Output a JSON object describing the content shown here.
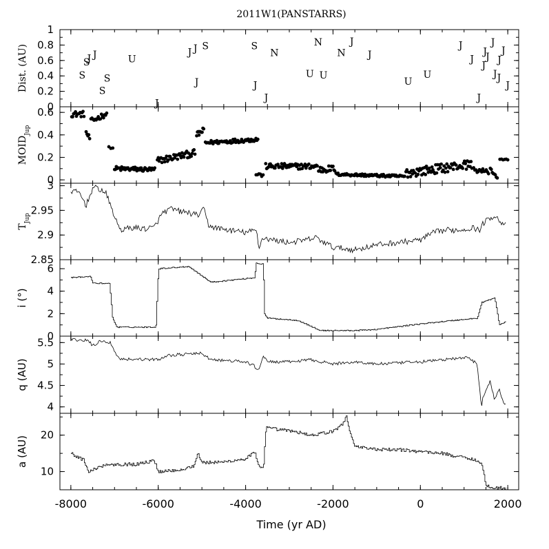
{
  "title": "2011W1(PANSTARRS)",
  "xlabel": "Time (yr AD)",
  "x_range": [
    -8250,
    2250
  ],
  "x_ticks": [
    -8000,
    -6000,
    -4000,
    -2000,
    0,
    2000
  ],
  "x_tick_labels": [
    "-8000",
    "-6000",
    "-4000",
    "-2000",
    "0",
    "2000"
  ],
  "panel_labels": {
    "dist": "Dist. (AU)",
    "moid_main": "MOID",
    "moid_sub": "Jup",
    "tj_main": "T",
    "tj_sub": "Jup",
    "inc": "i (°)",
    "q": "q (AU)",
    "a": "a (AU)"
  },
  "chart_data": [
    {
      "id": "dist",
      "type": "scatter",
      "marker": "letters",
      "ylabel": "Dist. (AU)",
      "ylim": [
        0,
        1
      ],
      "ticks": [
        0,
        0.2,
        0.4,
        0.6,
        0.8,
        1
      ],
      "tick_labels": [
        "0",
        "0.2",
        "0.4",
        "0.6",
        "0.8",
        "1"
      ],
      "points": [
        {
          "x": -7740,
          "y": 0.41,
          "label": "S"
        },
        {
          "x": -7640,
          "y": 0.58,
          "label": "S"
        },
        {
          "x": -7580,
          "y": 0.63,
          "label": "J"
        },
        {
          "x": -7450,
          "y": 0.68,
          "label": "J"
        },
        {
          "x": -7280,
          "y": 0.21,
          "label": "S"
        },
        {
          "x": -7170,
          "y": 0.37,
          "label": "S"
        },
        {
          "x": -6600,
          "y": 0.62,
          "label": "U"
        },
        {
          "x": -6030,
          "y": 0.05,
          "label": "J"
        },
        {
          "x": -5280,
          "y": 0.71,
          "label": "J"
        },
        {
          "x": -5150,
          "y": 0.76,
          "label": "J"
        },
        {
          "x": -4920,
          "y": 0.79,
          "label": "S"
        },
        {
          "x": -5120,
          "y": 0.32,
          "label": "J"
        },
        {
          "x": -3800,
          "y": 0.79,
          "label": "S"
        },
        {
          "x": -3780,
          "y": 0.28,
          "label": "J"
        },
        {
          "x": -3530,
          "y": 0.12,
          "label": "J"
        },
        {
          "x": -3340,
          "y": 0.7,
          "label": "N"
        },
        {
          "x": -2530,
          "y": 0.43,
          "label": "U"
        },
        {
          "x": -2340,
          "y": 0.84,
          "label": "N"
        },
        {
          "x": -2220,
          "y": 0.41,
          "label": "U"
        },
        {
          "x": -1810,
          "y": 0.7,
          "label": "N"
        },
        {
          "x": -1570,
          "y": 0.85,
          "label": "J"
        },
        {
          "x": -1160,
          "y": 0.68,
          "label": "J"
        },
        {
          "x": -280,
          "y": 0.33,
          "label": "U"
        },
        {
          "x": 160,
          "y": 0.42,
          "label": "U"
        },
        {
          "x": 920,
          "y": 0.8,
          "label": "J"
        },
        {
          "x": 1180,
          "y": 0.62,
          "label": "J"
        },
        {
          "x": 1340,
          "y": 0.12,
          "label": "J"
        },
        {
          "x": 1450,
          "y": 0.54,
          "label": "J"
        },
        {
          "x": 1480,
          "y": 0.72,
          "label": "J"
        },
        {
          "x": 1540,
          "y": 0.65,
          "label": "J"
        },
        {
          "x": 1660,
          "y": 0.84,
          "label": "J"
        },
        {
          "x": 1710,
          "y": 0.43,
          "label": "J"
        },
        {
          "x": 1800,
          "y": 0.38,
          "label": "J"
        },
        {
          "x": 1810,
          "y": 0.61,
          "label": "J"
        },
        {
          "x": 1900,
          "y": 0.73,
          "label": "J"
        },
        {
          "x": 2000,
          "y": 0.28,
          "label": "J"
        }
      ]
    },
    {
      "id": "moid",
      "type": "scatter",
      "ylabel": "MOID Jup",
      "ylim": [
        -0.03,
        0.65
      ],
      "ticks": [
        0,
        0.2,
        0.4,
        0.6
      ],
      "tick_labels": [
        "0",
        "0.2",
        "0.4",
        "0.6"
      ],
      "segments": [
        {
          "x0": -7980,
          "x1": -7700,
          "n": 14,
          "v0": 0.585,
          "v1": 0.585,
          "noise": 0.025
        },
        {
          "x0": -7650,
          "x1": -7570,
          "n": 5,
          "v0": 0.42,
          "v1": 0.37,
          "noise": 0.02
        },
        {
          "x0": -7540,
          "x1": -7180,
          "n": 16,
          "v0": 0.52,
          "v1": 0.59,
          "noise": 0.025
        },
        {
          "x0": -7130,
          "x1": -7040,
          "n": 3,
          "v0": 0.29,
          "v1": 0.28,
          "noise": 0.005
        },
        {
          "x0": -7000,
          "x1": -6080,
          "n": 46,
          "v0": 0.1,
          "v1": 0.09,
          "noise": 0.02
        },
        {
          "x0": -6020,
          "x1": -5160,
          "n": 42,
          "v0": 0.17,
          "v1": 0.24,
          "noise": 0.03
        },
        {
          "x0": -5120,
          "x1": -4960,
          "n": 10,
          "v0": 0.4,
          "v1": 0.44,
          "noise": 0.025
        },
        {
          "x0": -4920,
          "x1": -3720,
          "n": 56,
          "v0": 0.33,
          "v1": 0.36,
          "noise": 0.018
        },
        {
          "x0": -3760,
          "x1": -3600,
          "n": 6,
          "v0": 0.05,
          "v1": 0.04,
          "noise": 0.015
        },
        {
          "x0": -3540,
          "x1": -2360,
          "n": 56,
          "v0": 0.12,
          "v1": 0.12,
          "noise": 0.025
        },
        {
          "x0": -2330,
          "x1": -1960,
          "n": 20,
          "v0": 0.09,
          "v1": 0.1,
          "noise": 0.03
        },
        {
          "x0": -1930,
          "x1": -360,
          "n": 72,
          "v0": 0.05,
          "v1": 0.03,
          "noise": 0.012
        },
        {
          "x0": -330,
          "x1": 1180,
          "n": 72,
          "v0": 0.06,
          "v1": 0.14,
          "noise": 0.04
        },
        {
          "x0": 1220,
          "x1": 1560,
          "n": 14,
          "v0": 0.09,
          "v1": 0.07,
          "noise": 0.02
        },
        {
          "x0": 1600,
          "x1": 1760,
          "n": 8,
          "v0": 0.1,
          "v1": 0.02,
          "noise": 0.02
        },
        {
          "x0": 1820,
          "x1": 2000,
          "n": 6,
          "v0": 0.18,
          "v1": 0.18,
          "noise": 0.005
        }
      ]
    },
    {
      "id": "tj",
      "type": "line",
      "ylabel": "T Jup",
      "ylim": [
        2.85,
        3.005
      ],
      "ticks": [
        2.85,
        2.9,
        2.95,
        3
      ],
      "tick_labels": [
        "2.85",
        "2.9",
        "2.95",
        "3"
      ],
      "x": [
        -8000,
        -7800,
        -7650,
        -7500,
        -7380,
        -7200,
        -7050,
        -6950,
        -6850,
        -6600,
        -6300,
        -6100,
        -5900,
        -5700,
        -5500,
        -5300,
        -5100,
        -4950,
        -4850,
        -4700,
        -4400,
        -4000,
        -3750,
        -3700,
        -3600,
        -3400,
        -3000,
        -2600,
        -2400,
        -2000,
        -1500,
        -1000,
        -500,
        0,
        300,
        600,
        900,
        1200,
        1350,
        1450,
        1600,
        1700,
        1800,
        1950
      ],
      "values": [
        2.99,
        2.985,
        2.96,
        2.995,
        2.995,
        2.985,
        2.95,
        2.925,
        2.91,
        2.915,
        2.913,
        2.915,
        2.945,
        2.953,
        2.948,
        2.945,
        2.94,
        2.952,
        2.92,
        2.915,
        2.91,
        2.905,
        2.91,
        2.875,
        2.895,
        2.89,
        2.885,
        2.89,
        2.895,
        2.875,
        2.87,
        2.88,
        2.885,
        2.89,
        2.905,
        2.91,
        2.91,
        2.915,
        2.91,
        2.925,
        2.935,
        2.94,
        2.93,
        2.92
      ],
      "noise": 0.006
    },
    {
      "id": "inc",
      "type": "line",
      "ylabel": "i (°)",
      "ylim": [
        0,
        6.8
      ],
      "ticks": [
        0,
        2,
        4,
        6
      ],
      "tick_labels": [
        "0",
        "2",
        "4",
        "6"
      ],
      "x": [
        -8000,
        -7550,
        -7500,
        -7120,
        -7050,
        -6950,
        -6060,
        -6000,
        -5300,
        -5200,
        -4800,
        -3800,
        -3760,
        -3600,
        -3580,
        -3500,
        -2800,
        -2300,
        -1500,
        -1000,
        -200,
        500,
        1300,
        1400,
        1700,
        1800,
        1950
      ],
      "values": [
        5.2,
        5.3,
        4.7,
        4.7,
        1.6,
        0.8,
        0.8,
        6.0,
        6.2,
        5.9,
        4.8,
        5.2,
        6.5,
        6.4,
        2.0,
        1.6,
        1.4,
        0.5,
        0.5,
        0.6,
        1.0,
        1.3,
        1.6,
        3.0,
        3.4,
        1.0,
        1.3
      ],
      "noise": 0.05
    },
    {
      "id": "q",
      "type": "line",
      "ylabel": "q (AU)",
      "ylim": [
        3.85,
        5.65
      ],
      "ticks": [
        4,
        4.5,
        5,
        5.5
      ],
      "tick_labels": [
        "4",
        "4.5",
        "5",
        "5.5"
      ],
      "x": [
        -8000,
        -7600,
        -7500,
        -7300,
        -7100,
        -6900,
        -6000,
        -5800,
        -5000,
        -4800,
        -4000,
        -3800,
        -3700,
        -3600,
        -3500,
        -3000,
        -2500,
        -2000,
        -1500,
        -1000,
        0,
        500,
        1100,
        1300,
        1400,
        1430,
        1550,
        1600,
        1700,
        1800,
        1900,
        1950
      ],
      "values": [
        5.57,
        5.55,
        5.42,
        5.55,
        5.5,
        5.12,
        5.1,
        5.2,
        5.25,
        5.1,
        5.05,
        4.95,
        4.85,
        5.2,
        5.05,
        5.05,
        5.1,
        5.0,
        5.05,
        5.0,
        5.05,
        5.1,
        5.15,
        5.0,
        4.0,
        4.2,
        4.5,
        4.6,
        4.15,
        4.45,
        4.1,
        4.05
      ],
      "noise": 0.035
    },
    {
      "id": "a",
      "type": "line",
      "ylabel": "a (AU)",
      "ylim": [
        5,
        26
      ],
      "ticks": [
        10,
        20
      ],
      "tick_labels": [
        "10",
        "20"
      ],
      "x": [
        -8000,
        -7700,
        -7600,
        -7200,
        -6500,
        -6100,
        -6000,
        -5500,
        -5200,
        -5100,
        -5000,
        -4600,
        -4000,
        -3800,
        -3700,
        -3600,
        -3540,
        -2900,
        -2500,
        -2000,
        -1800,
        -1700,
        -1600,
        -1500,
        -1000,
        -500,
        0,
        500,
        900,
        1200,
        1400,
        1500,
        1800,
        1950
      ],
      "values": [
        15,
        13,
        10,
        12,
        12,
        13,
        10,
        10.5,
        11.5,
        15,
        12.5,
        12.5,
        13.5,
        15.5,
        11,
        11,
        22,
        21,
        20,
        21,
        23,
        25,
        20,
        17,
        16,
        16,
        15.5,
        15,
        14,
        13.5,
        12,
        6,
        5.5,
        5.5
      ],
      "noise": 0.45
    }
  ]
}
